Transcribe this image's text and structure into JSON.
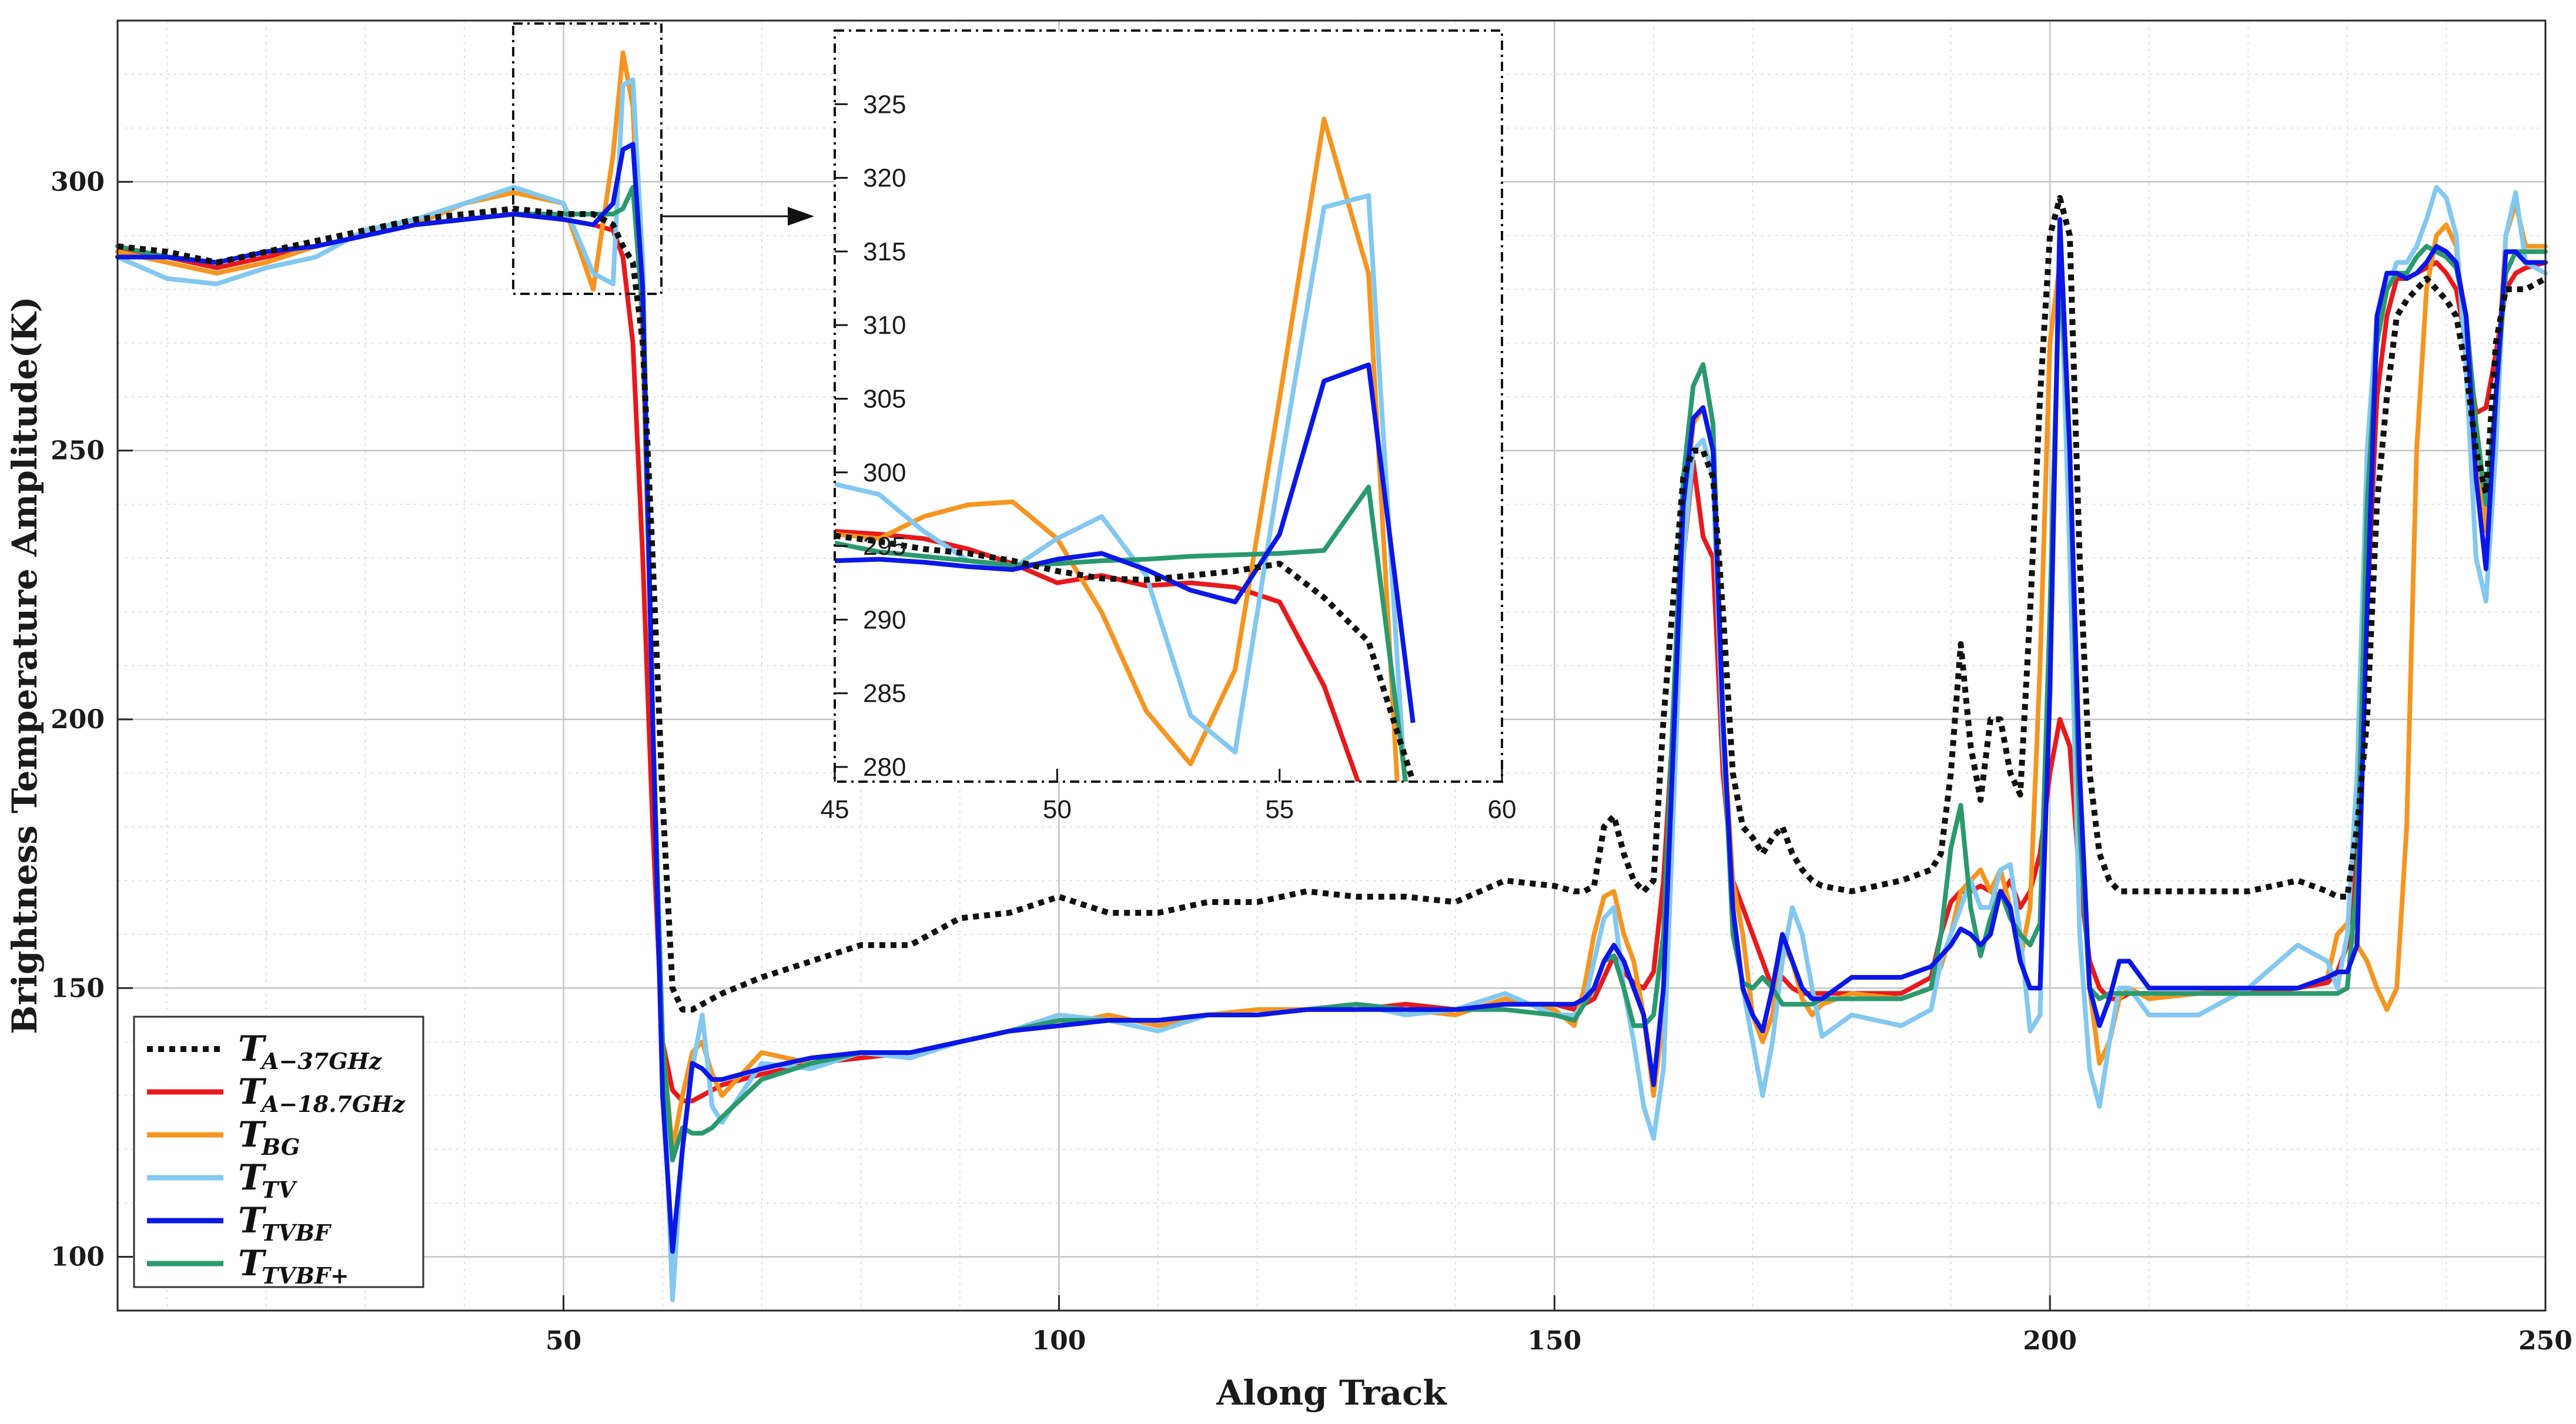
{
  "chart_data": {
    "type": "line",
    "title": "",
    "xlabel": "Along Track",
    "ylabel": "Brightness Temperature Amplitude(K)",
    "xlim": [
      5,
      250
    ],
    "ylim": [
      90,
      330
    ],
    "xticks": [
      50,
      100,
      150,
      200,
      250
    ],
    "yticks": [
      100,
      150,
      200,
      250,
      300
    ],
    "grid": true,
    "legend_position": "bottom-left",
    "x": [
      5,
      10,
      15,
      20,
      25,
      30,
      35,
      40,
      45,
      50,
      53,
      55,
      56,
      57,
      58,
      59,
      60,
      61,
      62,
      63,
      64,
      65,
      66,
      70,
      75,
      80,
      85,
      90,
      95,
      100,
      105,
      110,
      115,
      120,
      125,
      130,
      135,
      140,
      145,
      150,
      152,
      153,
      154,
      155,
      156,
      157,
      158,
      159,
      160,
      161,
      163,
      164,
      165,
      166,
      167,
      168,
      169,
      170,
      171,
      172,
      173,
      174,
      175,
      176,
      177,
      180,
      185,
      188,
      189,
      190,
      191,
      192,
      193,
      194,
      195,
      196,
      197,
      198,
      199,
      200,
      201,
      202,
      203,
      204,
      205,
      206,
      207,
      208,
      210,
      215,
      220,
      225,
      228,
      229,
      230,
      231,
      232,
      233,
      234,
      235,
      236,
      237,
      238,
      239,
      240,
      241,
      242,
      243,
      244,
      245,
      246,
      247,
      248,
      250
    ],
    "series": [
      {
        "name": "T_A-37GHz",
        "base": "T",
        "sub": "A−37GHz",
        "color": "#111111",
        "dash": "dotted",
        "values": [
          288,
          287,
          285,
          287,
          289,
          291,
          293,
          294,
          295,
          294,
          294,
          292,
          288,
          285,
          270,
          230,
          185,
          150,
          146,
          146,
          147,
          148,
          149,
          152,
          155,
          158,
          158,
          163,
          164,
          167,
          164,
          164,
          166,
          166,
          168,
          167,
          167,
          166,
          170,
          169,
          168,
          168,
          169,
          180,
          182,
          175,
          170,
          168,
          170,
          200,
          245,
          250,
          250,
          245,
          220,
          190,
          180,
          178,
          175,
          178,
          180,
          175,
          172,
          170,
          169,
          168,
          170,
          172,
          175,
          190,
          214,
          195,
          185,
          200,
          200,
          190,
          186,
          220,
          260,
          290,
          297,
          290,
          230,
          190,
          175,
          170,
          168,
          168,
          168,
          168,
          168,
          170,
          168,
          167,
          167,
          180,
          200,
          240,
          260,
          275,
          278,
          280,
          282,
          280,
          278,
          275,
          265,
          250,
          242,
          270,
          280,
          280,
          280,
          282
        ]
      },
      {
        "name": "T_A-18.7GHz",
        "base": "T",
        "sub": "A−18.7GHz",
        "color": "#e8191c",
        "dash": "solid",
        "values": [
          287,
          286,
          284,
          286,
          288,
          290,
          292,
          293,
          294,
          293,
          292,
          291,
          286,
          270,
          230,
          180,
          140,
          131,
          129,
          129,
          130,
          131,
          132,
          134,
          136,
          137,
          138,
          140,
          142,
          143,
          144,
          144,
          145,
          145,
          146,
          146,
          147,
          146,
          147,
          147,
          146,
          147,
          148,
          152,
          156,
          153,
          151,
          150,
          153,
          170,
          230,
          248,
          234,
          230,
          190,
          170,
          165,
          160,
          155,
          150,
          152,
          150,
          149,
          149,
          149,
          149,
          149,
          152,
          160,
          166,
          168,
          168,
          169,
          168,
          167,
          170,
          165,
          168,
          175,
          190,
          200,
          195,
          170,
          155,
          150,
          148,
          148,
          149,
          149,
          149,
          149,
          150,
          151,
          153,
          158,
          180,
          220,
          260,
          275,
          282,
          282,
          283,
          284,
          285,
          283,
          280,
          270,
          257,
          258,
          268,
          280,
          283,
          284,
          285
        ]
      },
      {
        "name": "T_BG",
        "base": "T",
        "sub": "BG",
        "color": "#f59520",
        "dash": "solid",
        "values": [
          287,
          285,
          283,
          285,
          288,
          290,
          292,
          296,
          298,
          296,
          280,
          305,
          324,
          314,
          270,
          200,
          140,
          120,
          130,
          138,
          140,
          134,
          130,
          138,
          136,
          138,
          137,
          140,
          142,
          143,
          145,
          143,
          145,
          146,
          146,
          147,
          146,
          145,
          148,
          146,
          143,
          150,
          160,
          167,
          168,
          160,
          155,
          145,
          130,
          145,
          235,
          255,
          258,
          250,
          200,
          170,
          160,
          145,
          140,
          145,
          158,
          155,
          148,
          145,
          147,
          149,
          148,
          150,
          154,
          160,
          168,
          170,
          172,
          168,
          172,
          165,
          155,
          165,
          210,
          270,
          285,
          240,
          180,
          150,
          136,
          140,
          148,
          150,
          148,
          149,
          150,
          150,
          152,
          160,
          162,
          158,
          155,
          150,
          146,
          150,
          180,
          250,
          280,
          290,
          292,
          288,
          270,
          250,
          235,
          260,
          290,
          296,
          288,
          288
        ]
      },
      {
        "name": "T_TV",
        "base": "T",
        "sub": "TV",
        "color": "#82c8f0",
        "dash": "solid",
        "values": [
          286,
          282,
          281,
          284,
          286,
          291,
          293,
          296,
          299,
          296,
          283,
          281,
          318,
          319,
          285,
          200,
          140,
          92,
          120,
          135,
          145,
          128,
          125,
          136,
          135,
          138,
          137,
          140,
          142,
          145,
          144,
          142,
          145,
          145,
          146,
          147,
          145,
          146,
          149,
          145,
          145,
          147,
          155,
          163,
          165,
          150,
          140,
          128,
          122,
          135,
          230,
          250,
          252,
          245,
          195,
          165,
          150,
          140,
          130,
          140,
          155,
          165,
          160,
          150,
          141,
          145,
          143,
          146,
          155,
          160,
          165,
          170,
          165,
          165,
          172,
          173,
          160,
          142,
          145,
          210,
          290,
          230,
          160,
          135,
          128,
          140,
          150,
          150,
          145,
          145,
          150,
          158,
          155,
          150,
          160,
          190,
          250,
          275,
          280,
          285,
          285,
          288,
          293,
          299,
          297,
          290,
          265,
          230,
          222,
          250,
          290,
          298,
          285,
          283
        ]
      },
      {
        "name": "T_TVBF",
        "base": "T",
        "sub": "TVBF",
        "color": "#0a17e6",
        "dash": "solid",
        "values": [
          286,
          286,
          285,
          287,
          288,
          290,
          292,
          293,
          294,
          293,
          292,
          296,
          306,
          307,
          280,
          200,
          130,
          101,
          120,
          136,
          135,
          133,
          133,
          135,
          137,
          138,
          138,
          140,
          142,
          143,
          144,
          144,
          145,
          145,
          146,
          146,
          146,
          146,
          147,
          147,
          147,
          148,
          150,
          155,
          158,
          155,
          150,
          145,
          132,
          150,
          240,
          256,
          258,
          250,
          200,
          165,
          150,
          145,
          142,
          150,
          160,
          155,
          150,
          148,
          148,
          152,
          152,
          154,
          156,
          158,
          161,
          160,
          158,
          160,
          168,
          165,
          155,
          150,
          150,
          205,
          293,
          250,
          190,
          150,
          143,
          148,
          155,
          155,
          150,
          150,
          150,
          150,
          152,
          153,
          153,
          158,
          220,
          275,
          283,
          283,
          282,
          283,
          285,
          288,
          287,
          285,
          275,
          245,
          228,
          260,
          287,
          287,
          285,
          285
        ]
      },
      {
        "name": "T_TVBF+",
        "base": "T",
        "sub": "TVBF+",
        "color": "#2a9a6e",
        "dash": "solid",
        "values": [
          288,
          286,
          285,
          287,
          288,
          290,
          292,
          293,
          294,
          294,
          294,
          294,
          295,
          299,
          275,
          200,
          140,
          118,
          124,
          123,
          123,
          124,
          126,
          133,
          136,
          138,
          138,
          140,
          142,
          144,
          144,
          144,
          145,
          145,
          146,
          147,
          146,
          146,
          146,
          145,
          144,
          147,
          150,
          155,
          156,
          150,
          143,
          143,
          145,
          160,
          245,
          262,
          266,
          255,
          200,
          160,
          151,
          150,
          152,
          150,
          147,
          147,
          147,
          147,
          148,
          148,
          148,
          150,
          160,
          176,
          184,
          165,
          156,
          163,
          168,
          163,
          160,
          158,
          162,
          220,
          286,
          250,
          180,
          150,
          148,
          149,
          149,
          149,
          149,
          149,
          149,
          149,
          149,
          149,
          150,
          170,
          240,
          270,
          280,
          283,
          283,
          286,
          288,
          287,
          286,
          284,
          275,
          255,
          240,
          260,
          283,
          287,
          287,
          287
        ]
      }
    ],
    "inset": {
      "xlim": [
        45,
        60
      ],
      "ylim": [
        279,
        330
      ],
      "xticks": [
        45,
        50,
        55,
        60
      ],
      "yticks": [
        280,
        285,
        290,
        295,
        300,
        305,
        310,
        315,
        320,
        325
      ],
      "x": [
        45,
        46,
        47,
        48,
        49,
        50,
        51,
        52,
        53,
        54,
        55,
        56,
        57,
        58
      ],
      "series": [
        {
          "name": "T_A-37GHz",
          "values": [
            295.7,
            295.3,
            294.8,
            294.5,
            294.0,
            293.3,
            292.8,
            292.7,
            293.0,
            293.3,
            293.8,
            291.5,
            288.5,
            279.0
          ]
        },
        {
          "name": "T_A-18.7GHz",
          "values": [
            296.0,
            295.8,
            295.5,
            294.8,
            293.8,
            292.5,
            293.0,
            292.3,
            292.5,
            292.2,
            291.2,
            285.5,
            277.0,
            270.0
          ]
        },
        {
          "name": "T_BG",
          "values": [
            295.8,
            295.5,
            297.0,
            297.8,
            298.0,
            295.5,
            290.5,
            283.8,
            280.2,
            286.6,
            305.0,
            324.0,
            313.5,
            260.0
          ]
        },
        {
          "name": "T_TV",
          "values": [
            299.2,
            298.5,
            296.0,
            294.0,
            293.5,
            295.5,
            297.0,
            293.0,
            283.5,
            281.0,
            300.0,
            318.0,
            318.8,
            270.0
          ]
        },
        {
          "name": "T_TVBF",
          "values": [
            294.0,
            294.1,
            293.9,
            293.6,
            293.4,
            294.1,
            294.5,
            293.4,
            292.0,
            291.2,
            295.8,
            306.2,
            307.3,
            283.0
          ]
        },
        {
          "name": "T_TVBF+",
          "values": [
            295.2,
            294.6,
            294.3,
            294.0,
            293.7,
            293.8,
            294.0,
            294.1,
            294.3,
            294.4,
            294.5,
            294.7,
            299.0,
            275.0
          ]
        }
      ]
    }
  }
}
